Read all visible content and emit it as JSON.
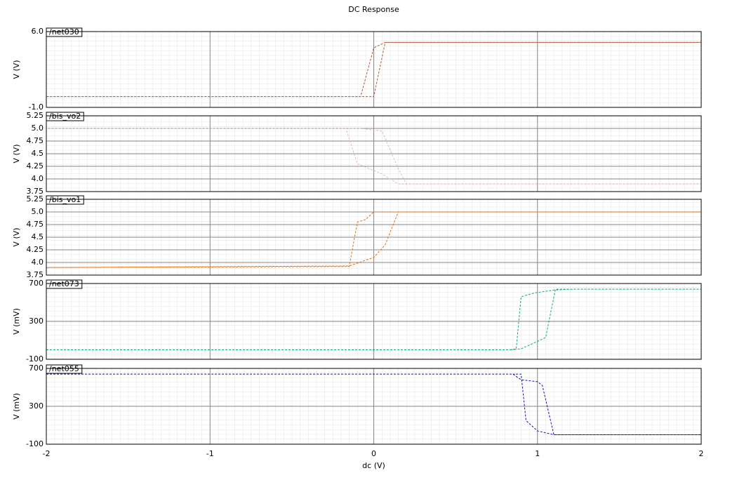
{
  "chart_data": [
    {
      "type": "line",
      "title": "DC Response",
      "ylabel": "V (V)",
      "xlim": [
        -2,
        2
      ],
      "xticks": [
        -2,
        -1,
        0,
        1,
        2
      ],
      "ylim": [
        -1,
        6
      ],
      "yticks": [
        {
          "value": 6,
          "label": "6.0"
        },
        {
          "value": -1,
          "label": "-1.0"
        }
      ],
      "series": [
        {
          "name": "/net030",
          "color": "#b8503a",
          "x": [
            -2,
            0,
            0.07,
            2,
            0.07,
            0,
            -0.08,
            -2
          ],
          "values": [
            0,
            0,
            5,
            5,
            5,
            4.5,
            0,
            0
          ]
        }
      ]
    },
    {
      "type": "line",
      "ylabel": "V (V)",
      "xlim": [
        -2,
        2
      ],
      "xticks": [
        -2,
        -1,
        0,
        1,
        2
      ],
      "ylim": [
        3.75,
        5.25
      ],
      "yticks": [
        5.25,
        {
          "value": 5,
          "label": "5.0"
        },
        4.75,
        {
          "value": 4.5,
          "label": "4.5"
        },
        4.25,
        {
          "value": 4,
          "label": "4.0"
        },
        3.75
      ],
      "series": [
        {
          "name": "/bis_vo2",
          "color": "#e8b4dc",
          "x": [
            -2,
            -0.17,
            -0.1,
            0.05,
            0.15,
            2,
            0.2,
            0.15,
            0.05,
            -0.08,
            -0.17
          ],
          "values": [
            5,
            5,
            4.3,
            4.1,
            3.9,
            3.9,
            3.9,
            4.2,
            4.95,
            5,
            5
          ]
        }
      ]
    },
    {
      "type": "line",
      "ylabel": "V (V)",
      "xlim": [
        -2,
        2
      ],
      "xticks": [
        -2,
        -1,
        0,
        1,
        2
      ],
      "ylim": [
        3.75,
        5.25
      ],
      "yticks": [
        5.25,
        {
          "value": 5,
          "label": "5.0"
        },
        4.75,
        {
          "value": 4.5,
          "label": "4.5"
        },
        4.25,
        {
          "value": 4,
          "label": "4.0"
        },
        3.75
      ],
      "series": [
        {
          "name": "/bis_vo1",
          "color": "#e07010",
          "x": [
            -2,
            -0.15,
            -0.1,
            -0.05,
            0,
            0.08,
            2,
            0.15,
            0.07,
            0,
            -0.15,
            -2
          ],
          "values": [
            3.9,
            3.92,
            4.8,
            4.85,
            5,
            5,
            5,
            5,
            4.35,
            4.1,
            3.93,
            3.9
          ]
        }
      ]
    },
    {
      "type": "line",
      "ylabel": "V (mV)",
      "xlim": [
        -2,
        2
      ],
      "xticks": [
        -2,
        -1,
        0,
        1,
        2
      ],
      "ylim": [
        -100,
        700
      ],
      "yticks": [
        700,
        300,
        -100
      ],
      "series": [
        {
          "name": "/net073",
          "color": "#10a878",
          "x": [
            -2,
            0.83,
            0.87,
            0.9,
            0.98,
            1.1,
            1.2,
            2,
            1.11,
            1.05,
            1.0,
            0.9,
            0.83
          ],
          "values": [
            0,
            0,
            10,
            560,
            600,
            630,
            640,
            640,
            640,
            130,
            90,
            10,
            0
          ]
        }
      ]
    },
    {
      "type": "line",
      "ylabel": "V (mV)",
      "xlabel": "dc (V)",
      "xlim": [
        -2,
        2
      ],
      "xticks": [
        -2,
        -1,
        0,
        1,
        2
      ],
      "ylim": [
        -100,
        700
      ],
      "yticks": [
        700,
        300,
        -100
      ],
      "series": [
        {
          "name": "/net055",
          "color": "#1010c8",
          "x": [
            -2,
            0.85,
            0.9,
            1.0,
            1.03,
            1.1,
            2,
            1.1,
            1.0,
            0.93,
            0.9,
            0.85
          ],
          "values": [
            640,
            640,
            580,
            560,
            520,
            0,
            0,
            0,
            40,
            150,
            640,
            640
          ]
        }
      ]
    }
  ]
}
